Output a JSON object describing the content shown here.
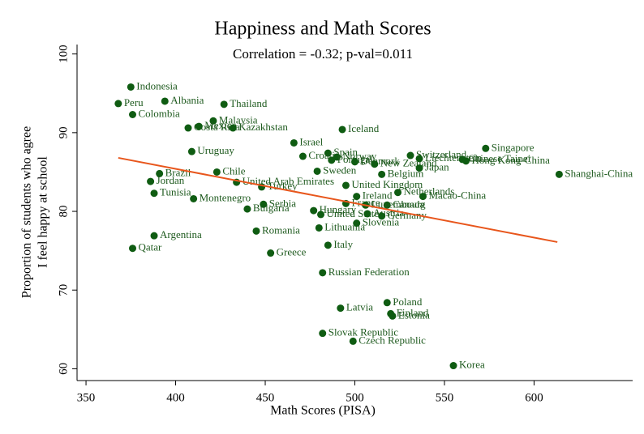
{
  "chart_data": {
    "type": "scatter",
    "title": "Happiness and Math Scores",
    "subtitle": "Correlation = -0.32; p-val=0.011",
    "xlabel": "Math Scores (PISA)",
    "ylabel": [
      "Proportion of students who agree",
      "I feel happy at school"
    ],
    "color": "#0f5c12",
    "label_color": "#1e5a1e",
    "point_labels": [
      "Indonesia",
      "Peru",
      "Albania",
      "Colombia",
      "Thailand",
      "Malaysia",
      "Costa Rica",
      "Mexico",
      "Kazakhstan",
      "Iceland",
      "Uruguay",
      "Israel",
      "Singapore",
      "Spain",
      "Croatia",
      "Norway",
      "Portugal",
      "Denmark",
      "New Zealand",
      "Switzerland",
      "Liechtenstein",
      "Chinese Taipei",
      "Hong Kong-China",
      "Japan",
      "Shanghai-China",
      "Belgium",
      "Sweden",
      "United Kingdom",
      "Chile",
      "Brazil",
      "Jordan",
      "United Arab Emirates",
      "Turkey",
      "Tunisia",
      "Netherlands",
      "Macao-China",
      "Ireland",
      "Montenegro",
      "France",
      "Canada",
      "Luxembourg",
      "Serbia",
      "Bulgaria",
      "Hungary",
      "United States",
      "Austria",
      "Germany",
      "Lithuania",
      "Slovenia",
      "Romania",
      "Argentina",
      "Italy",
      "Qatar",
      "Greece",
      "Russian Federation",
      "Poland",
      "Latvia",
      "Finland",
      "Estonia",
      "Slovak Republic",
      "Czech Republic",
      "Korea"
    ],
    "x": [
      375,
      368,
      394,
      376,
      427,
      421,
      407,
      413,
      432,
      493,
      409,
      466,
      573,
      485,
      471,
      490,
      487,
      500,
      511,
      531,
      536,
      560,
      562,
      536,
      614,
      515,
      479,
      495,
      423,
      391,
      386,
      434,
      448,
      388,
      524,
      538,
      501,
      410,
      495,
      518,
      506,
      449,
      440,
      477,
      481,
      507,
      515,
      480,
      501,
      445,
      388,
      485,
      376,
      453,
      482,
      518,
      492,
      520,
      521,
      482,
      499,
      555
    ],
    "values": [
      95.8,
      93.7,
      94.0,
      92.3,
      93.6,
      91.5,
      90.6,
      90.8,
      90.6,
      90.4,
      87.6,
      88.7,
      88.0,
      87.4,
      87.0,
      86.9,
      86.5,
      86.3,
      86.0,
      87.1,
      86.7,
      86.6,
      86.4,
      85.5,
      84.7,
      84.7,
      85.1,
      83.3,
      85.0,
      84.8,
      83.8,
      83.7,
      83.1,
      82.3,
      82.4,
      81.9,
      81.9,
      81.6,
      81.0,
      80.8,
      80.8,
      80.9,
      80.3,
      80.1,
      79.6,
      79.7,
      79.4,
      77.9,
      78.5,
      77.5,
      76.9,
      75.7,
      75.3,
      74.7,
      72.2,
      68.4,
      67.7,
      67.0,
      66.7,
      64.5,
      63.5,
      60.4
    ],
    "fit": {
      "color": "#e8561c",
      "x": [
        368,
        613
      ],
      "y": [
        86.8,
        76.1
      ]
    },
    "xlim": [
      345,
      655
    ],
    "ylim": [
      58.5,
      101.2
    ],
    "xticks": [
      350,
      400,
      450,
      500,
      550,
      600
    ],
    "yticks": [
      60,
      70,
      80,
      90,
      100
    ]
  }
}
